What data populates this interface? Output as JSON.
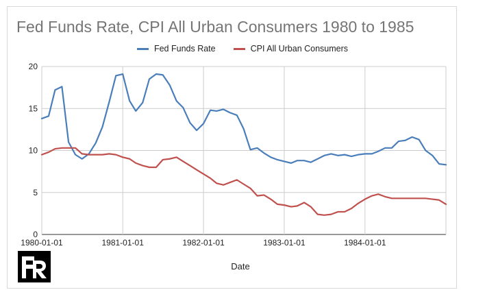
{
  "chart_data": {
    "type": "line",
    "title": "Fed Funds Rate, CPI All Urban Consumers 1980 to 1985",
    "xlabel": "Date",
    "ylabel": "",
    "ylim": [
      0,
      20
    ],
    "xlim": [
      "1980-01-01",
      "1985-01-01"
    ],
    "yticks": [
      0,
      5,
      10,
      15,
      20
    ],
    "xticks": [
      "1980-01-01",
      "1981-01-01",
      "1982-01-01",
      "1983-01-01",
      "1984-01-01"
    ],
    "grid": true,
    "legend_position": "top",
    "series": [
      {
        "name": "Fed Funds Rate",
        "color": "#4a7ebb",
        "points": [
          [
            "1980-01-01",
            13.8
          ],
          [
            "1980-02-01",
            14.1
          ],
          [
            "1980-03-01",
            17.2
          ],
          [
            "1980-04-01",
            17.6
          ],
          [
            "1980-05-01",
            11.0
          ],
          [
            "1980-06-01",
            9.5
          ],
          [
            "1980-07-01",
            9.0
          ],
          [
            "1980-08-01",
            9.6
          ],
          [
            "1980-09-01",
            10.9
          ],
          [
            "1980-10-01",
            12.8
          ],
          [
            "1980-11-01",
            15.8
          ],
          [
            "1980-12-01",
            18.9
          ],
          [
            "1981-01-01",
            19.1
          ],
          [
            "1981-02-01",
            15.9
          ],
          [
            "1981-03-01",
            14.7
          ],
          [
            "1981-04-01",
            15.7
          ],
          [
            "1981-05-01",
            18.5
          ],
          [
            "1981-06-01",
            19.1
          ],
          [
            "1981-07-01",
            19.0
          ],
          [
            "1981-08-01",
            17.8
          ],
          [
            "1981-09-01",
            15.9
          ],
          [
            "1981-10-01",
            15.1
          ],
          [
            "1981-11-01",
            13.3
          ],
          [
            "1981-12-01",
            12.4
          ],
          [
            "1982-01-01",
            13.2
          ],
          [
            "1982-02-01",
            14.8
          ],
          [
            "1982-03-01",
            14.7
          ],
          [
            "1982-04-01",
            14.9
          ],
          [
            "1982-05-01",
            14.5
          ],
          [
            "1982-06-01",
            14.2
          ],
          [
            "1982-07-01",
            12.6
          ],
          [
            "1982-08-01",
            10.1
          ],
          [
            "1982-09-01",
            10.3
          ],
          [
            "1982-10-01",
            9.7
          ],
          [
            "1982-11-01",
            9.2
          ],
          [
            "1982-12-01",
            8.9
          ],
          [
            "1983-01-01",
            8.7
          ],
          [
            "1983-02-01",
            8.5
          ],
          [
            "1983-03-01",
            8.8
          ],
          [
            "1983-04-01",
            8.8
          ],
          [
            "1983-05-01",
            8.6
          ],
          [
            "1983-06-01",
            9.0
          ],
          [
            "1983-07-01",
            9.4
          ],
          [
            "1983-08-01",
            9.6
          ],
          [
            "1983-09-01",
            9.4
          ],
          [
            "1983-10-01",
            9.5
          ],
          [
            "1983-11-01",
            9.3
          ],
          [
            "1983-12-01",
            9.5
          ],
          [
            "1984-01-01",
            9.6
          ],
          [
            "1984-02-01",
            9.6
          ],
          [
            "1984-03-01",
            9.9
          ],
          [
            "1984-04-01",
            10.3
          ],
          [
            "1984-05-01",
            10.3
          ],
          [
            "1984-06-01",
            11.1
          ],
          [
            "1984-07-01",
            11.2
          ],
          [
            "1984-08-01",
            11.6
          ],
          [
            "1984-09-01",
            11.3
          ],
          [
            "1984-10-01",
            10.0
          ],
          [
            "1984-11-01",
            9.4
          ],
          [
            "1984-12-01",
            8.4
          ],
          [
            "1985-01-01",
            8.3
          ]
        ]
      },
      {
        "name": "CPI All Urban Consumers",
        "color": "#c0504d",
        "points": [
          [
            "1980-01-01",
            9.5
          ],
          [
            "1980-02-01",
            9.8
          ],
          [
            "1980-03-01",
            10.2
          ],
          [
            "1980-04-01",
            10.3
          ],
          [
            "1980-05-01",
            10.3
          ],
          [
            "1980-06-01",
            10.3
          ],
          [
            "1980-07-01",
            9.6
          ],
          [
            "1980-08-01",
            9.5
          ],
          [
            "1980-09-01",
            9.5
          ],
          [
            "1980-10-01",
            9.5
          ],
          [
            "1980-11-01",
            9.6
          ],
          [
            "1980-12-01",
            9.5
          ],
          [
            "1981-01-01",
            9.2
          ],
          [
            "1981-02-01",
            9.0
          ],
          [
            "1981-03-01",
            8.5
          ],
          [
            "1981-04-01",
            8.2
          ],
          [
            "1981-05-01",
            8.0
          ],
          [
            "1981-06-01",
            8.0
          ],
          [
            "1981-07-01",
            8.9
          ],
          [
            "1981-08-01",
            9.0
          ],
          [
            "1981-09-01",
            9.2
          ],
          [
            "1981-10-01",
            8.7
          ],
          [
            "1981-11-01",
            8.2
          ],
          [
            "1981-12-01",
            7.7
          ],
          [
            "1982-01-01",
            7.2
          ],
          [
            "1982-02-01",
            6.7
          ],
          [
            "1982-03-01",
            6.1
          ],
          [
            "1982-04-01",
            5.9
          ],
          [
            "1982-05-01",
            6.2
          ],
          [
            "1982-06-01",
            6.5
          ],
          [
            "1982-07-01",
            6.0
          ],
          [
            "1982-08-01",
            5.5
          ],
          [
            "1982-09-01",
            4.6
          ],
          [
            "1982-10-01",
            4.7
          ],
          [
            "1982-11-01",
            4.2
          ],
          [
            "1982-12-01",
            3.6
          ],
          [
            "1983-01-01",
            3.5
          ],
          [
            "1983-02-01",
            3.3
          ],
          [
            "1983-03-01",
            3.4
          ],
          [
            "1983-04-01",
            3.8
          ],
          [
            "1983-05-01",
            3.3
          ],
          [
            "1983-06-01",
            2.4
          ],
          [
            "1983-07-01",
            2.3
          ],
          [
            "1983-08-01",
            2.4
          ],
          [
            "1983-09-01",
            2.7
          ],
          [
            "1983-10-01",
            2.7
          ],
          [
            "1983-11-01",
            3.1
          ],
          [
            "1983-12-01",
            3.7
          ],
          [
            "1984-01-01",
            4.2
          ],
          [
            "1984-02-01",
            4.6
          ],
          [
            "1984-03-01",
            4.8
          ],
          [
            "1984-04-01",
            4.5
          ],
          [
            "1984-05-01",
            4.3
          ],
          [
            "1984-06-01",
            4.3
          ],
          [
            "1984-07-01",
            4.3
          ],
          [
            "1984-08-01",
            4.3
          ],
          [
            "1984-09-01",
            4.3
          ],
          [
            "1984-10-01",
            4.3
          ],
          [
            "1984-11-01",
            4.2
          ],
          [
            "1984-12-01",
            4.1
          ],
          [
            "1985-01-01",
            3.6
          ]
        ]
      }
    ]
  },
  "logo": {
    "name": "fr-logo",
    "text": "FR"
  }
}
